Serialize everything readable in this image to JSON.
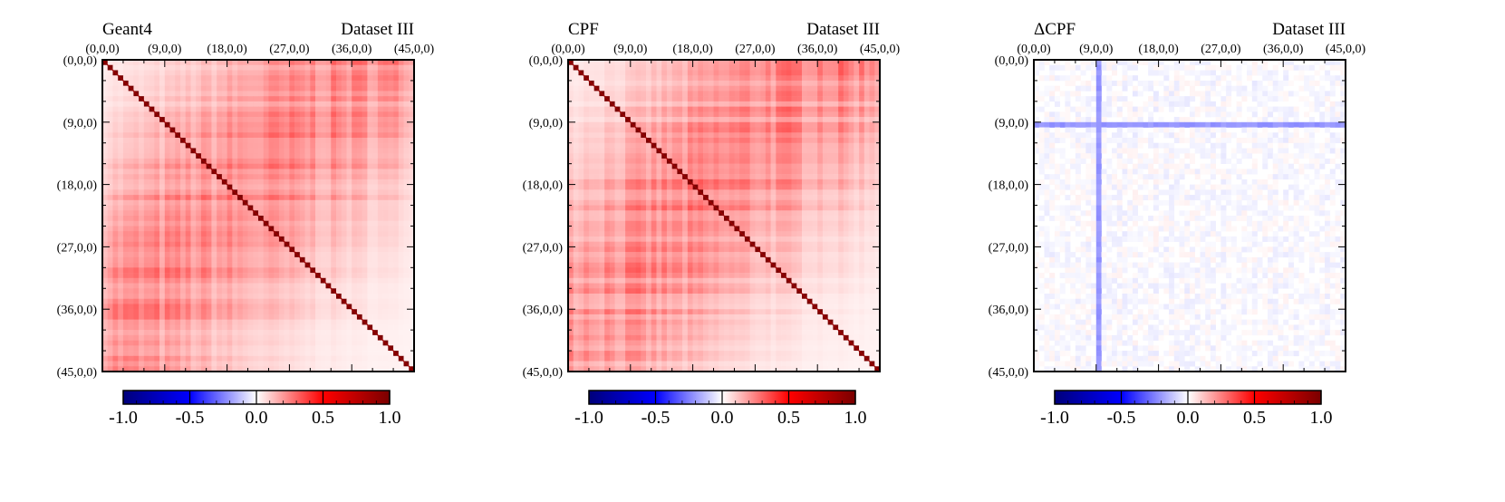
{
  "figure": {
    "panels": [
      {
        "title_left": "Geant4",
        "title_right": "Dataset III",
        "kind": "correlation"
      },
      {
        "title_left": "CPF",
        "title_right": "Dataset III",
        "kind": "correlation"
      },
      {
        "title_left": "ΔCPF",
        "title_right": "Dataset III",
        "kind": "difference"
      }
    ]
  },
  "chart_data": [
    {
      "type": "heatmap",
      "title": "Geant4",
      "subtitle": "Dataset III",
      "x_tick_labels": [
        "(0,0,0)",
        "(9,0,0)",
        "(18,0,0)",
        "(27,0,0)",
        "(36,0,0)",
        "(45,0,0)"
      ],
      "y_tick_labels": [
        "(0,0,0)",
        "(9,0,0)",
        "(18,0,0)",
        "(27,0,0)",
        "(36,0,0)",
        "(45,0,0)"
      ],
      "x_range": [
        0,
        45
      ],
      "y_range": [
        0,
        45
      ],
      "diagonal_value": 1.0,
      "typical_offdiag_range": [
        0.0,
        0.5
      ],
      "colorbar": {
        "min": -1.0,
        "max": 1.0,
        "ticks": [
          "-1.0",
          "-0.5",
          "0.0",
          "0.5",
          "1.0"
        ],
        "colors": [
          "#00007a",
          "#0000ff",
          "#ffffff",
          "#ff0000",
          "#7a0000"
        ]
      }
    },
    {
      "type": "heatmap",
      "title": "CPF",
      "subtitle": "Dataset III",
      "x_tick_labels": [
        "(0,0,0)",
        "(9,0,0)",
        "(18,0,0)",
        "(27,0,0)",
        "(36,0,0)",
        "(45,0,0)"
      ],
      "y_tick_labels": [
        "(0,0,0)",
        "(9,0,0)",
        "(18,0,0)",
        "(27,0,0)",
        "(36,0,0)",
        "(45,0,0)"
      ],
      "x_range": [
        0,
        45
      ],
      "y_range": [
        0,
        45
      ],
      "diagonal_value": 1.0,
      "typical_offdiag_range": [
        0.0,
        0.5
      ],
      "colorbar": {
        "min": -1.0,
        "max": 1.0,
        "ticks": [
          "-1.0",
          "-0.5",
          "0.0",
          "0.5",
          "1.0"
        ],
        "colors": [
          "#00007a",
          "#0000ff",
          "#ffffff",
          "#ff0000",
          "#7a0000"
        ]
      }
    },
    {
      "type": "heatmap",
      "title": "ΔCPF",
      "subtitle": "Dataset III",
      "x_tick_labels": [
        "(0,0,0)",
        "(9,0,0)",
        "(18,0,0)",
        "(27,0,0)",
        "(36,0,0)",
        "(45,0,0)"
      ],
      "y_tick_labels": [
        "(0,0,0)",
        "(9,0,0)",
        "(18,0,0)",
        "(27,0,0)",
        "(36,0,0)",
        "(45,0,0)"
      ],
      "x_range": [
        0,
        45
      ],
      "y_range": [
        0,
        45
      ],
      "diagonal_value": 0.0,
      "typical_offdiag_range": [
        -0.15,
        0.05
      ],
      "colorbar": {
        "min": -1.0,
        "max": 1.0,
        "ticks": [
          "-1.0",
          "-0.5",
          "0.0",
          "0.5",
          "1.0"
        ],
        "colors": [
          "#00007a",
          "#0000ff",
          "#ffffff",
          "#ff0000",
          "#7a0000"
        ]
      }
    }
  ]
}
